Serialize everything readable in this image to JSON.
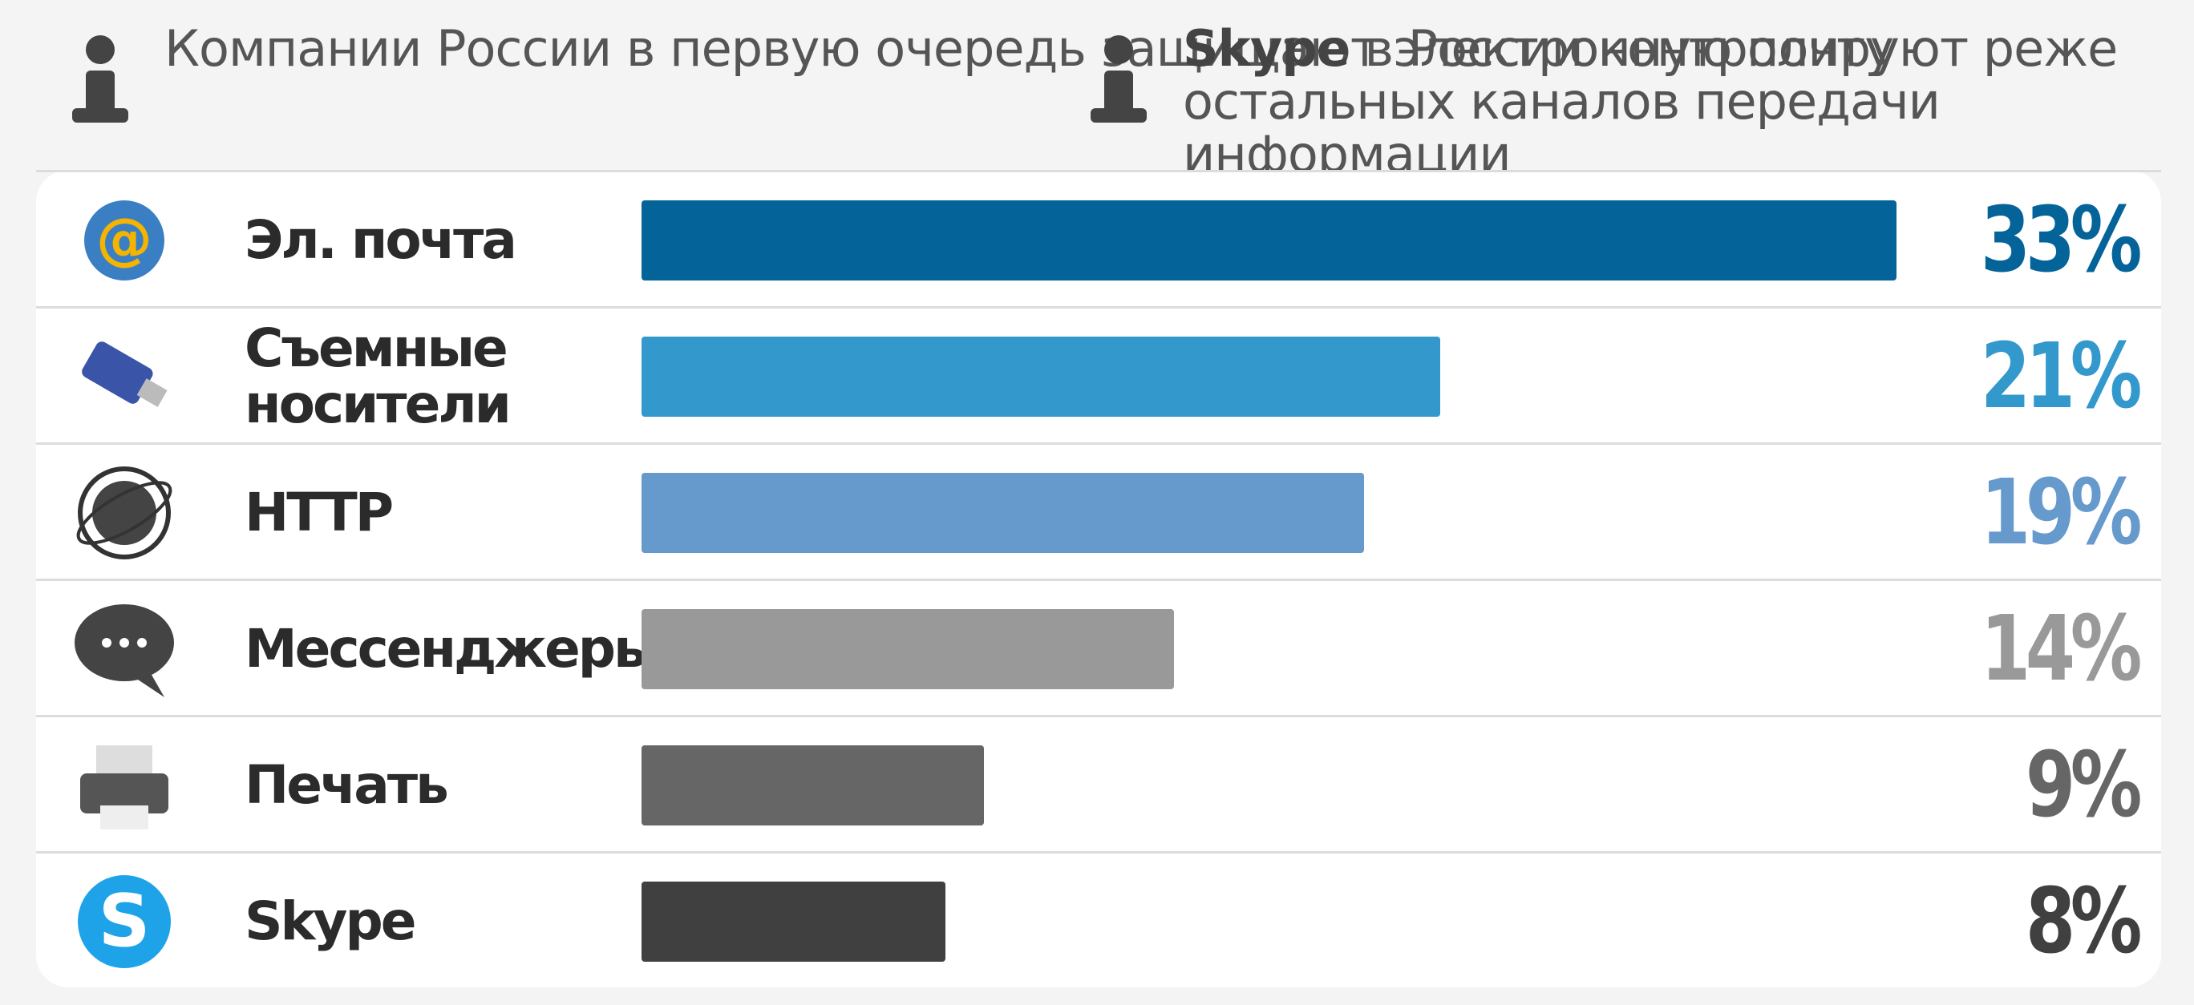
{
  "notes": [
    {
      "text": "Компании России в первую очередь защищают электронную почту"
    },
    {
      "bold": "Skype",
      "text": "в России контролируют реже остальных каналов передачи информации"
    }
  ],
  "chart_data": {
    "type": "bar",
    "orientation": "horizontal",
    "categories": [
      "Эл. почта",
      "Съемные носители",
      "HTTP",
      "Мессенджеры",
      "Печать",
      "Skype"
    ],
    "values": [
      33,
      21,
      19,
      14,
      9,
      8
    ],
    "value_labels": [
      "33%",
      "21%",
      "19%",
      "14%",
      "9%",
      "8%"
    ],
    "colors": [
      "#04649a",
      "#3399cc",
      "#6699cc",
      "#999999",
      "#666666",
      "#404040"
    ]
  }
}
